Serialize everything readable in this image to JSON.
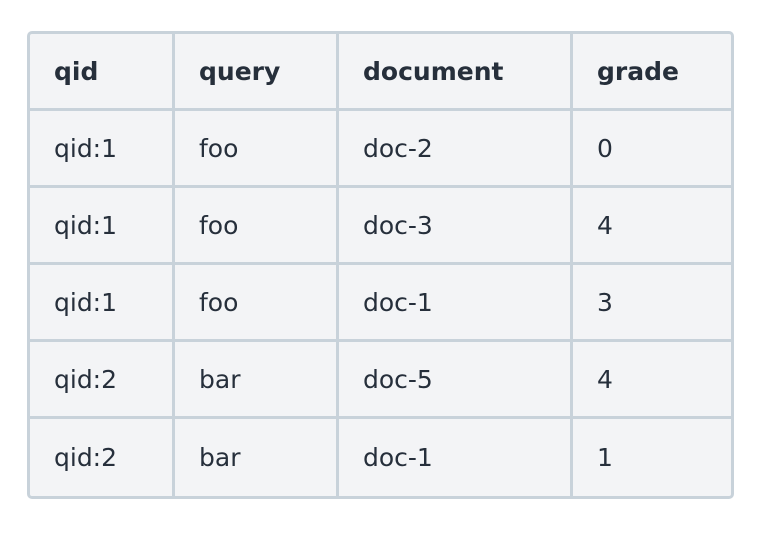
{
  "table": {
    "headers": [
      "qid",
      "query",
      "document",
      "grade"
    ],
    "rows": [
      [
        "qid:1",
        "foo",
        "doc-2",
        "0"
      ],
      [
        "qid:1",
        "foo",
        "doc-3",
        "4"
      ],
      [
        "qid:1",
        "foo",
        "doc-1",
        "3"
      ],
      [
        "qid:2",
        "bar",
        "doc-5",
        "4"
      ],
      [
        "qid:2",
        "bar",
        "doc-1",
        "1"
      ]
    ]
  },
  "colors": {
    "border": "#c8d2da",
    "background": "#f3f4f6",
    "text": "#262f3b"
  }
}
